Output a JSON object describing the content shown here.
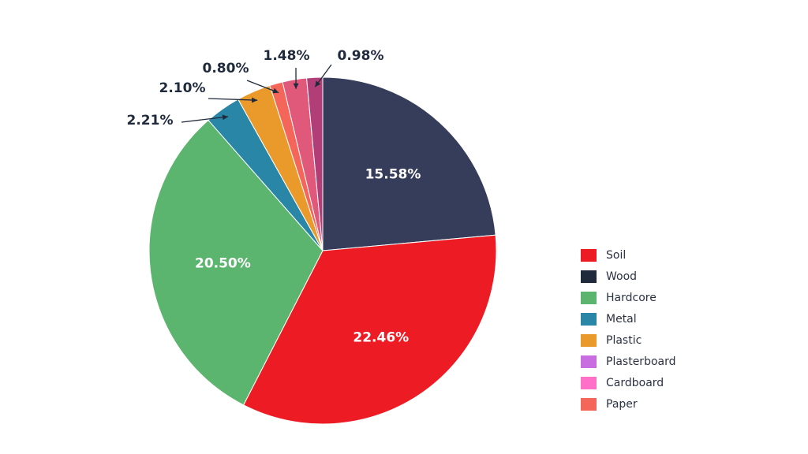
{
  "chart_data": {
    "type": "pie",
    "start_angle_deg": 0,
    "direction": "clockwise",
    "slices": [
      {
        "label": "Wood",
        "value": 15.58,
        "color": "#353d5a",
        "display": "15.58%",
        "label_mode": "inside"
      },
      {
        "label": "Soil",
        "value": 22.46,
        "color": "#ed1c24",
        "display": "22.46%",
        "label_mode": "inside"
      },
      {
        "label": "Hardcore",
        "value": 20.5,
        "color": "#5cb56e",
        "display": "20.50%",
        "label_mode": "inside"
      },
      {
        "label": "Metal",
        "value": 2.21,
        "color": "#2a86a6",
        "display": "2.21%",
        "label_mode": "outside"
      },
      {
        "label": "Plastic",
        "value": 2.1,
        "color": "#ea9a2a",
        "display": "2.10%",
        "label_mode": "outside"
      },
      {
        "label": "Paper",
        "value": 0.8,
        "color": "#f5665a",
        "display": "0.80%",
        "label_mode": "outside"
      },
      {
        "label": "Cardboard",
        "value": 1.48,
        "color": "#e0587a",
        "display": "1.48%",
        "label_mode": "outside"
      },
      {
        "label": "Plasterboard",
        "value": 0.98,
        "color": "#b23e78",
        "display": "0.98%",
        "label_mode": "outside"
      }
    ]
  },
  "legend": {
    "placement": "right",
    "items": [
      {
        "label": "Soil",
        "color": "#ed1c24"
      },
      {
        "label": "Wood",
        "color": "#1f2a3c"
      },
      {
        "label": "Hardcore",
        "color": "#5cb56e"
      },
      {
        "label": "Metal",
        "color": "#2a86a6"
      },
      {
        "label": "Plastic",
        "color": "#ea9a2a"
      },
      {
        "label": "Plasterboard",
        "color": "#c86ee0"
      },
      {
        "label": "Cardboard",
        "color": "#ff70c8"
      },
      {
        "label": "Paper",
        "color": "#f5665a"
      }
    ]
  }
}
